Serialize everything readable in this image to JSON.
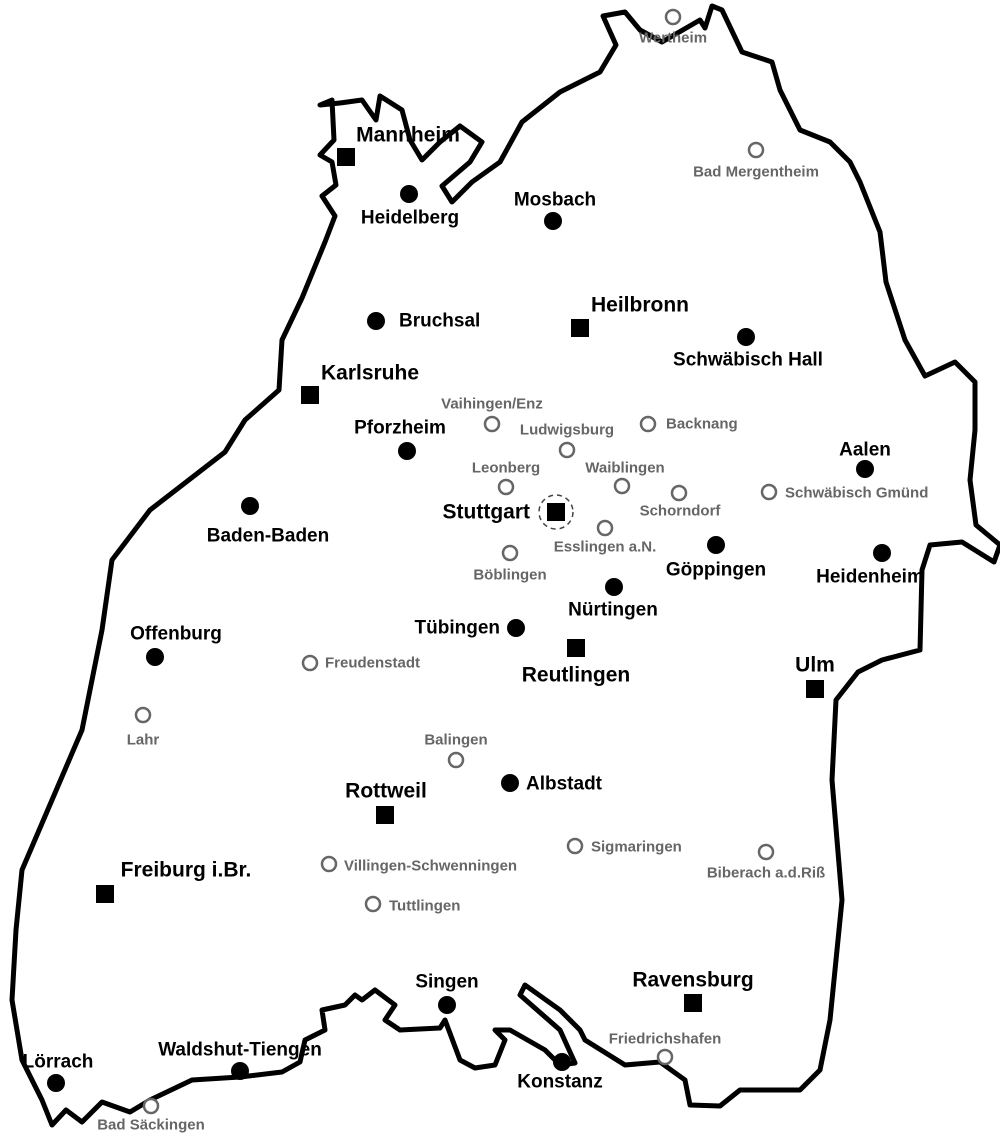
{
  "colors": {
    "outline": "#000000",
    "major": "#000000",
    "minor": "#666666",
    "background": "#ffffff"
  },
  "legend_marker_types": {
    "square": "major city",
    "circle": "city",
    "open-circle": "town"
  },
  "cities": [
    {
      "name": "Wertheim",
      "type": "open-circle"
    },
    {
      "name": "Mannheim",
      "type": "square"
    },
    {
      "name": "Heidelberg",
      "type": "circle"
    },
    {
      "name": "Mosbach",
      "type": "circle"
    },
    {
      "name": "Bad Mergentheim",
      "type": "open-circle"
    },
    {
      "name": "Bruchsal",
      "type": "circle"
    },
    {
      "name": "Heilbronn",
      "type": "square"
    },
    {
      "name": "Schwäbisch Hall",
      "type": "circle"
    },
    {
      "name": "Karlsruhe",
      "type": "square"
    },
    {
      "name": "Vaihingen/Enz",
      "type": "open-circle"
    },
    {
      "name": "Ludwigsburg",
      "type": "open-circle"
    },
    {
      "name": "Backnang",
      "type": "open-circle"
    },
    {
      "name": "Pforzheim",
      "type": "circle"
    },
    {
      "name": "Aalen",
      "type": "circle"
    },
    {
      "name": "Leonberg",
      "type": "open-circle"
    },
    {
      "name": "Waiblingen",
      "type": "open-circle"
    },
    {
      "name": "Schorndorf",
      "type": "open-circle"
    },
    {
      "name": "Schwäbisch Gmünd",
      "type": "open-circle"
    },
    {
      "name": "Baden-Baden",
      "type": "circle"
    },
    {
      "name": "Stuttgart",
      "type": "square",
      "capital": true
    },
    {
      "name": "Esslingen a.N.",
      "type": "open-circle"
    },
    {
      "name": "Böblingen",
      "type": "open-circle"
    },
    {
      "name": "Göppingen",
      "type": "circle"
    },
    {
      "name": "Heidenheim",
      "type": "circle"
    },
    {
      "name": "Nürtingen",
      "type": "circle"
    },
    {
      "name": "Tübingen",
      "type": "circle"
    },
    {
      "name": "Offenburg",
      "type": "circle"
    },
    {
      "name": "Freudenstadt",
      "type": "open-circle"
    },
    {
      "name": "Reutlingen",
      "type": "square"
    },
    {
      "name": "Ulm",
      "type": "square"
    },
    {
      "name": "Lahr",
      "type": "open-circle"
    },
    {
      "name": "Balingen",
      "type": "open-circle"
    },
    {
      "name": "Albstadt",
      "type": "circle"
    },
    {
      "name": "Rottweil",
      "type": "square"
    },
    {
      "name": "Sigmaringen",
      "type": "open-circle"
    },
    {
      "name": "Biberach a.d.Riß",
      "type": "open-circle"
    },
    {
      "name": "Freiburg i.Br.",
      "type": "square"
    },
    {
      "name": "Villingen-Schwenningen",
      "type": "open-circle"
    },
    {
      "name": "Tuttlingen",
      "type": "open-circle"
    },
    {
      "name": "Singen",
      "type": "circle"
    },
    {
      "name": "Ravensburg",
      "type": "square"
    },
    {
      "name": "Friedrichshafen",
      "type": "open-circle"
    },
    {
      "name": "Konstanz",
      "type": "circle"
    },
    {
      "name": "Waldshut-Tiengen",
      "type": "circle"
    },
    {
      "name": "Lörrach",
      "type": "circle"
    },
    {
      "name": "Bad Säckingen",
      "type": "open-circle"
    }
  ]
}
